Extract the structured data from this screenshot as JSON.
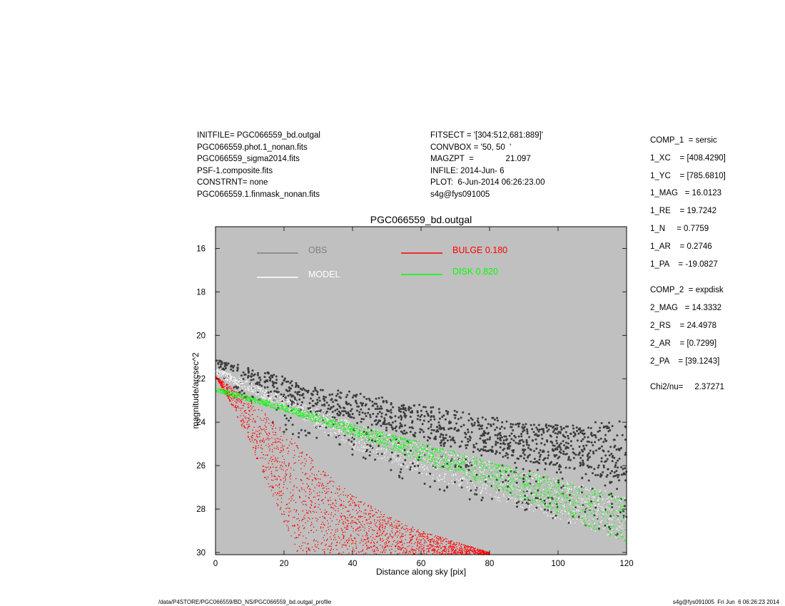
{
  "header_left": [
    "INITFILE= PGC066559_bd.outgal",
    "PGC066559.phot.1_nonan.fits",
    "PGC066559_sigma2014.fits",
    "PSF-1.composite.fits",
    "CONSTRNT= none",
    "PGC066559.1.finmask_nonan.fits"
  ],
  "header_mid": [
    "FITSECT = '[304:512,681:889]'",
    "CONVBOX = '50, 50  '",
    "MAGZPT  =              21.097",
    "INFILE: 2014-Jun- 6",
    "PLOT:  6-Jun-2014 06:26:23.00",
    "s4g@fys091005"
  ],
  "params_comp1": [
    "COMP_1  = sersic",
    "1_XC    = [408.4290]",
    "1_YC    = [785.6810]",
    "1_MAG   = 16.0123",
    "1_RE    = 19.7242",
    "1_N     = 0.7759",
    "1_AR    = 0.2746",
    "1_PA    = -19.0827"
  ],
  "params_comp2": [
    "COMP_2  = expdisk",
    "2_MAG   = 14.3332",
    "2_RS    = 24.4978",
    "2_AR    = [0.7299]",
    "2_PA    = [39.1243]"
  ],
  "chi2": "Chi2/nu=     2.37271",
  "footer_left": "/data/P4STORE/PGC066559/BD_NS/PGC066559_bd.outgal_profile",
  "footer_right": "s4g@fys091005  Fri Jun  6 06:26:23 2014",
  "chart_data": {
    "type": "scatter",
    "title": "PGC066559_bd.outgal",
    "xlabel": "Distance along sky [pix]",
    "ylabel": "magnitude/arcsec^2",
    "xlim": [
      0,
      120
    ],
    "ylim": [
      30.1,
      15
    ],
    "y_inverted": true,
    "xticks": [
      0,
      20,
      40,
      60,
      80,
      100,
      120
    ],
    "yticks": [
      16,
      18,
      20,
      22,
      24,
      26,
      28,
      30
    ],
    "background": "#c0c0c0",
    "legend": [
      {
        "label": "OBS",
        "color": "#808080"
      },
      {
        "label": "MODEL",
        "color": "#ffffff"
      },
      {
        "label": "BULGE  0.180",
        "color": "#ff0000"
      },
      {
        "label": "DISK  0.820",
        "color": "#00ff00"
      }
    ],
    "series": [
      {
        "name": "OBS",
        "color": "#3c3c3c",
        "points": [
          [
            2,
            21.3
          ],
          [
            10,
            21.8
          ],
          [
            20,
            22.4
          ],
          [
            30,
            23.0
          ],
          [
            40,
            23.2
          ],
          [
            50,
            23.6
          ],
          [
            60,
            24.0
          ],
          [
            70,
            24.3
          ],
          [
            80,
            24.6
          ],
          [
            90,
            24.9
          ],
          [
            100,
            25.1
          ],
          [
            110,
            25.3
          ],
          [
            120,
            25.5
          ]
        ],
        "spread_low": [
          [
            2,
            21.3
          ],
          [
            20,
            22.2
          ],
          [
            40,
            22.8
          ],
          [
            60,
            23.5
          ],
          [
            80,
            24.0
          ],
          [
            100,
            24.2
          ],
          [
            120,
            23.7
          ]
        ],
        "spread_high": [
          [
            2,
            22.0
          ],
          [
            20,
            24.5
          ],
          [
            40,
            25.5
          ],
          [
            60,
            27.0
          ],
          [
            80,
            27.8
          ],
          [
            100,
            28.5
          ],
          [
            120,
            29.5
          ]
        ]
      },
      {
        "name": "MODEL",
        "color": "#ffffff",
        "upper": [
          [
            0,
            21.5
          ],
          [
            20,
            22.8
          ],
          [
            40,
            24.0
          ],
          [
            60,
            25.0
          ],
          [
            80,
            25.8
          ],
          [
            100,
            26.6
          ],
          [
            120,
            27.4
          ]
        ],
        "lower": [
          [
            0,
            21.8
          ],
          [
            20,
            23.4
          ],
          [
            40,
            25.2
          ],
          [
            60,
            26.4
          ],
          [
            80,
            27.5
          ],
          [
            100,
            28.5
          ],
          [
            120,
            29.5
          ]
        ]
      },
      {
        "name": "BULGE",
        "color": "#ff0000",
        "upper": [
          [
            0,
            21.9
          ],
          [
            10,
            22.9
          ],
          [
            20,
            24.4
          ],
          [
            30,
            26.0
          ],
          [
            40,
            27.3
          ],
          [
            50,
            28.3
          ],
          [
            60,
            29.0
          ],
          [
            70,
            29.5
          ],
          [
            80,
            30.0
          ]
        ],
        "lower": [
          [
            0,
            21.9
          ],
          [
            5,
            23.3
          ],
          [
            10,
            25.0
          ],
          [
            15,
            26.8
          ],
          [
            20,
            28.6
          ],
          [
            24,
            30.0
          ]
        ]
      },
      {
        "name": "DISK",
        "color": "#00ff00",
        "upper": [
          [
            0,
            22.4
          ],
          [
            20,
            23.2
          ],
          [
            40,
            24.1
          ],
          [
            60,
            24.9
          ],
          [
            80,
            25.8
          ],
          [
            100,
            26.6
          ],
          [
            120,
            27.5
          ]
        ],
        "lower": [
          [
            0,
            22.6
          ],
          [
            20,
            23.5
          ],
          [
            40,
            24.6
          ],
          [
            60,
            25.8
          ],
          [
            80,
            27.0
          ],
          [
            100,
            28.2
          ],
          [
            120,
            29.6
          ]
        ]
      }
    ]
  }
}
